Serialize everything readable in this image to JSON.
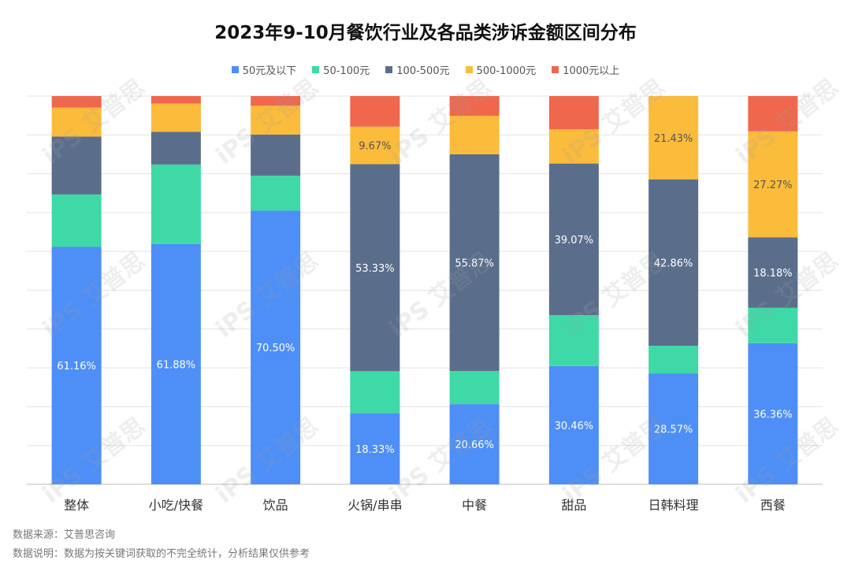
{
  "chart_data": {
    "type": "bar",
    "stacked": true,
    "title": "2023年9-10月餐饮行业及各品类涉诉金额区间分布",
    "categories": [
      "整体",
      "小吃/快餐",
      "饮品",
      "火锅/串串",
      "中餐",
      "甜品",
      "日韩料理",
      "西餐"
    ],
    "ylim": [
      0,
      100
    ],
    "grid": true,
    "legend_position": "top",
    "series": [
      {
        "name": "50元及以下",
        "color": "#4e8ef7",
        "values": [
          61.16,
          61.88,
          70.5,
          18.33,
          20.66,
          30.46,
          28.57,
          36.36
        ],
        "labels": [
          "61.16%",
          "61.88%",
          "70.50%",
          "18.33%",
          "20.66%",
          "30.46%",
          "28.57%",
          "36.36%"
        ]
      },
      {
        "name": "50-100元",
        "color": "#3ed9a6",
        "values": [
          13.5,
          20.5,
          9.0,
          10.8,
          8.5,
          13.1,
          7.1,
          9.1
        ],
        "labels": [
          "",
          "",
          "",
          "",
          "",
          "",
          "",
          ""
        ]
      },
      {
        "name": "100-500元",
        "color": "#5a6e8c",
        "values": [
          14.9,
          8.4,
          10.6,
          53.33,
          55.87,
          39.07,
          42.86,
          18.18
        ],
        "labels": [
          "",
          "",
          "",
          "53.33%",
          "55.87%",
          "39.07%",
          "42.86%",
          "18.18%"
        ]
      },
      {
        "name": "500-1000元",
        "color": "#fbbb3b",
        "values": [
          7.5,
          7.3,
          7.4,
          9.67,
          9.9,
          8.8,
          21.43,
          27.27
        ],
        "labels": [
          "",
          "",
          "",
          "9.67%",
          "",
          "",
          "21.43%",
          "27.27%"
        ]
      },
      {
        "name": "1000元以上",
        "color": "#ef674c",
        "values": [
          2.94,
          1.92,
          2.5,
          7.87,
          5.07,
          8.57,
          0,
          9.09
        ],
        "labels": [
          "",
          "",
          "",
          "",
          "",
          "",
          "",
          ""
        ]
      }
    ]
  },
  "footer": {
    "source": "数据来源：艾普思咨询",
    "note": "数据说明：数据为按关键词获取的不完全统计，分析结果仅供参考"
  },
  "watermark": {
    "brand": "艾普思",
    "sub": "IPS Consulting"
  }
}
